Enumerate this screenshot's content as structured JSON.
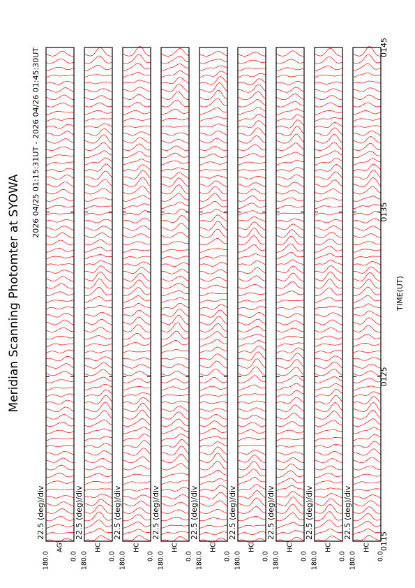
{
  "chart_data": {
    "type": "stacked-scan",
    "title": "Meridian Scanning Photomter at SYOWA",
    "subtitle": "2026 04/25 01:15:31UT - 2026 04/26 01:45:30UT",
    "xlabel": "TIME(UT)",
    "xlim": [
      0,
      30
    ],
    "xticks": [
      {
        "value": 0,
        "label": "0115"
      },
      {
        "value": 10,
        "label": "0125"
      },
      {
        "value": 20,
        "label": "0135"
      },
      {
        "value": 30,
        "label": "0145"
      }
    ],
    "ylim": [
      0,
      180
    ],
    "yticks": [
      {
        "value": 180,
        "label": "180.0"
      },
      {
        "value": 0,
        "label": "0.0"
      }
    ],
    "scale_label": "22.5 (deg)/div",
    "color": "#ff0000",
    "panels": [
      {
        "channel": "AG"
      },
      {
        "channel": "HC"
      },
      {
        "channel": "HC"
      },
      {
        "channel": "HC"
      },
      {
        "channel": "HC"
      },
      {
        "channel": "HC"
      },
      {
        "channel": "HC"
      },
      {
        "channel": "HC"
      },
      {
        "channel": "HC"
      }
    ]
  }
}
